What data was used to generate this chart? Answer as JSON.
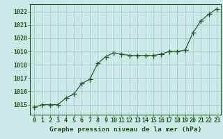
{
  "x": [
    0,
    1,
    2,
    3,
    4,
    5,
    6,
    7,
    8,
    9,
    10,
    11,
    12,
    13,
    14,
    15,
    16,
    17,
    18,
    19,
    20,
    21,
    22,
    23
  ],
  "y": [
    1014.8,
    1015.0,
    1015.0,
    1015.0,
    1015.5,
    1015.8,
    1016.6,
    1016.9,
    1018.1,
    1018.6,
    1018.9,
    1018.8,
    1018.7,
    1018.7,
    1018.7,
    1018.7,
    1018.8,
    1019.0,
    1019.0,
    1019.1,
    1020.4,
    1021.3,
    1021.8,
    1022.2
  ],
  "ylim": [
    1014.25,
    1022.55
  ],
  "yticks": [
    1015,
    1016,
    1017,
    1018,
    1019,
    1020,
    1021,
    1022
  ],
  "xlim": [
    -0.5,
    23.5
  ],
  "xticks": [
    0,
    1,
    2,
    3,
    4,
    5,
    6,
    7,
    8,
    9,
    10,
    11,
    12,
    13,
    14,
    15,
    16,
    17,
    18,
    19,
    20,
    21,
    22,
    23
  ],
  "xlabel": "Graphe pression niveau de la mer (hPa)",
  "line_color": "#2a5c2a",
  "marker": "P",
  "marker_size": 2.8,
  "line_width": 0.9,
  "bg_color": "#cce8e8",
  "grid_color": "#aacccc",
  "tick_label_color": "#1a5c1a",
  "xlabel_color": "#1a5c1a",
  "xlabel_fontsize": 6.8,
  "tick_fontsize": 6.0
}
